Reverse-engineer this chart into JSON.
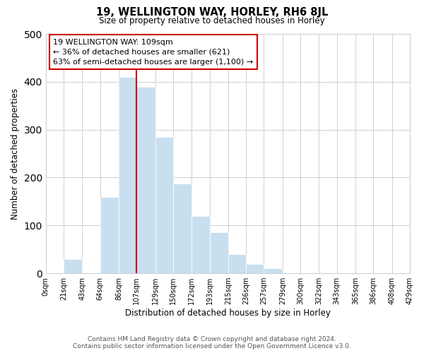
{
  "title": "19, WELLINGTON WAY, HORLEY, RH6 8JL",
  "subtitle": "Size of property relative to detached houses in Horley",
  "xlabel": "Distribution of detached houses by size in Horley",
  "ylabel": "Number of detached properties",
  "footer_line1": "Contains HM Land Registry data © Crown copyright and database right 2024.",
  "footer_line2": "Contains public sector information licensed under the Open Government Licence v3.0.",
  "bin_edges": [
    0,
    21,
    43,
    64,
    86,
    107,
    129,
    150,
    172,
    193,
    215,
    236,
    257,
    279,
    300,
    322,
    343,
    365,
    386,
    408,
    429
  ],
  "bar_heights": [
    0,
    30,
    0,
    160,
    410,
    390,
    285,
    187,
    120,
    85,
    40,
    20,
    10,
    0,
    0,
    0,
    0,
    0,
    0,
    0
  ],
  "tick_labels": [
    "0sqm",
    "21sqm",
    "43sqm",
    "64sqm",
    "86sqm",
    "107sqm",
    "129sqm",
    "150sqm",
    "172sqm",
    "193sqm",
    "215sqm",
    "236sqm",
    "257sqm",
    "279sqm",
    "300sqm",
    "322sqm",
    "343sqm",
    "365sqm",
    "386sqm",
    "408sqm",
    "429sqm"
  ],
  "bar_color": "#c8dff0",
  "grid_color": "#d0d0d0",
  "property_line_x": 107,
  "property_line_color": "#cc0000",
  "annotation_line1": "19 WELLINGTON WAY: 109sqm",
  "annotation_line2": "← 36% of detached houses are smaller (621)",
  "annotation_line3": "63% of semi-detached houses are larger (1,100) →",
  "ylim": [
    0,
    500
  ],
  "background_color": "#ffffff"
}
